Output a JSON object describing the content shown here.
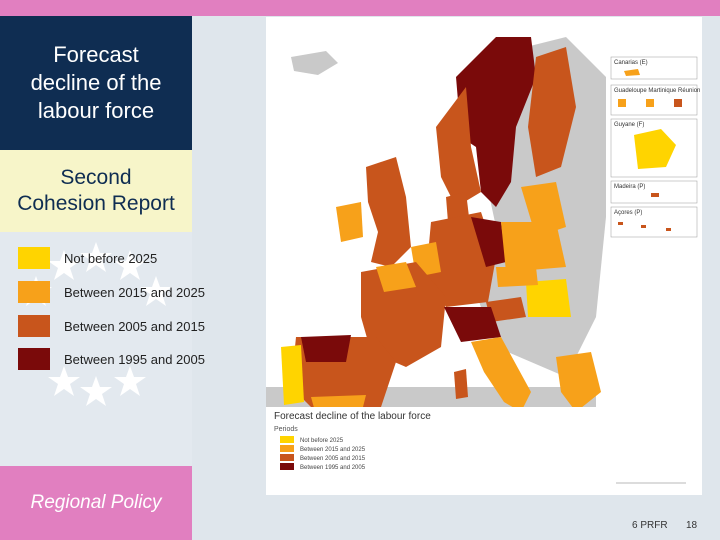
{
  "slide": {
    "title": "Forecast\ndecline of the\nlabour force",
    "subtitle": "Second\nCohesion Report",
    "footer_text": "Regional Policy",
    "footer_code": "6 PRFR",
    "page_number": "18"
  },
  "legend": {
    "items": [
      {
        "label": "Not before 2025",
        "color": "#ffd400"
      },
      {
        "label": "Between 2015 and 2025",
        "color": "#f7a11a"
      },
      {
        "label": "Between 2005 and 2015",
        "color": "#c8551c"
      },
      {
        "label": "Between 1995 and 2005",
        "color": "#7a0a0a"
      }
    ]
  },
  "map": {
    "legend_title": "Forecast decline of the labour force",
    "legend_subtitle": "Periods",
    "legend_items": [
      "Not before 2025",
      "Between 2015 and 2025",
      "Between 2005 and 2015",
      "Between 1995 and 2005"
    ],
    "insets": [
      "Canarias (E)",
      "Guadeloupe Martinique Réunion",
      "Guyane (F)",
      "Madeira (P)",
      "Açores (P)"
    ],
    "colors": {
      "sea": "#ffffff",
      "non_eu": "#c9c9c9",
      "not_before_2025": "#ffd400",
      "between_2015_2025": "#f7a11a",
      "between_2005_2015": "#c8551c",
      "between_1995_2005": "#7a0a0a"
    }
  }
}
